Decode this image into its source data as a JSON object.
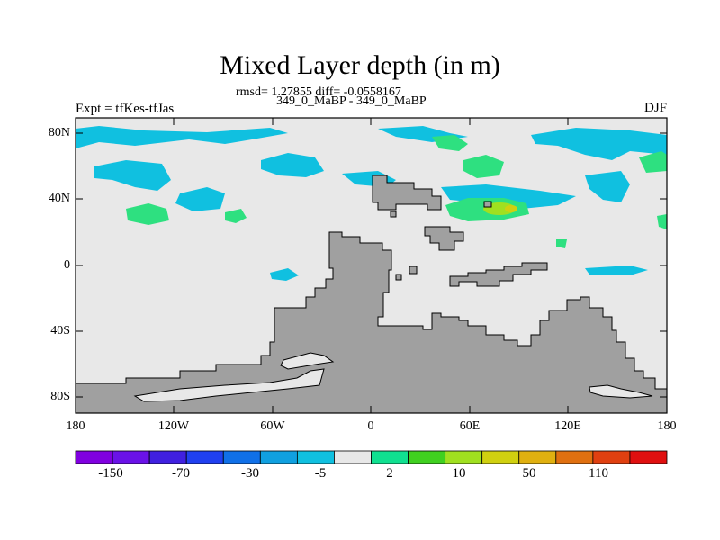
{
  "title": "Mixed Layer depth (in m)",
  "stats_line": "rmsd= 1.27855 diff= -0.0558167",
  "subtitle": "349_0_MaBP - 349_0_MaBP",
  "left_label": "Expt = tfKes-tfJas",
  "right_label": "DJF",
  "y_ticks": [
    "80N",
    "40N",
    "0",
    "40S",
    "80S"
  ],
  "x_ticks": [
    "180",
    "120W",
    "60W",
    "0",
    "60E",
    "120E",
    "180"
  ],
  "colorbar": {
    "tick_labels": [
      "-150",
      "-70",
      "-30",
      "-5",
      "2",
      "10",
      "50",
      "110"
    ],
    "colors": [
      "#8000e0",
      "#6a12e8",
      "#4020e0",
      "#2040f0",
      "#1070e8",
      "#10a0e0",
      "#10c0e0",
      "#e8e8e8",
      "#10e090",
      "#40d020",
      "#a0e020",
      "#d0d010",
      "#e0b010",
      "#e07010",
      "#e04010",
      "#e01010"
    ]
  },
  "colors": {
    "land": "#a0a0a0",
    "ocean_background": "#e8e8e8",
    "cyan_negative": "#10c0e0",
    "green_positive": "#2ee080",
    "lime": "#a0e020",
    "yellow": "#d0d010"
  }
}
